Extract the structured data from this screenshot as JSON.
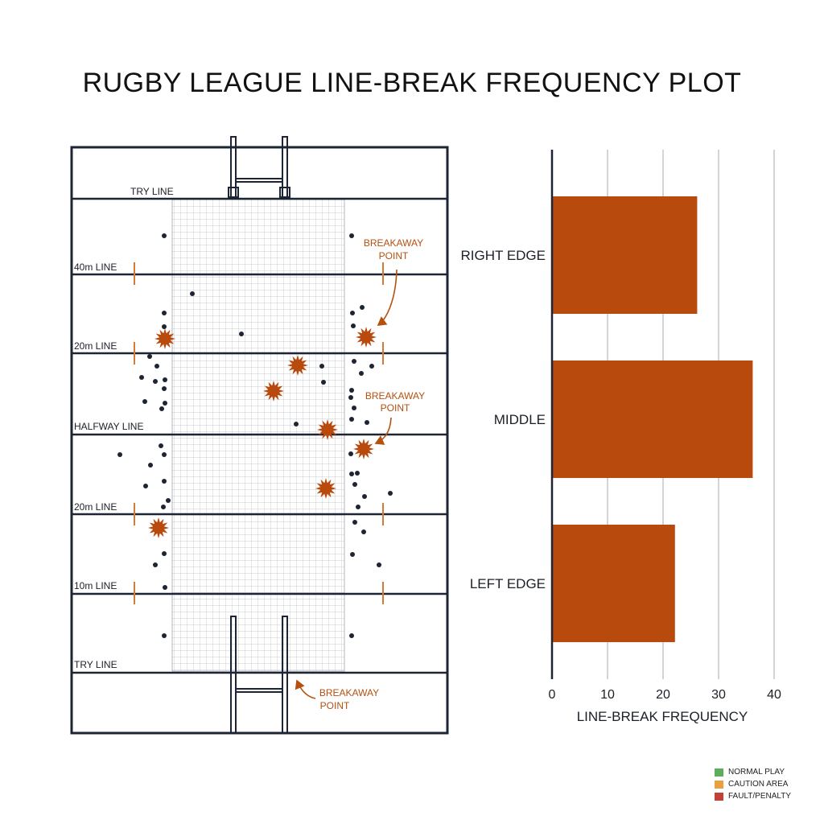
{
  "title": "RUGBY LEAGUE LINE-BREAK FREQUENCY PLOT",
  "colors": {
    "accent": "#b84a0e",
    "line": "#1d2433",
    "marker": "#d27a36",
    "legend_normal": "#5cae5a",
    "legend_caution": "#eaa040",
    "legend_fault": "#c44135"
  },
  "field": {
    "line_labels": [
      "TRY LINE",
      "40m LINE",
      "20m LINE",
      "HALFWAY LINE",
      "20m LINE",
      "10m LINE",
      "TRY LINE"
    ],
    "annotations": [
      {
        "line1": "BREAKAWAY",
        "line2": "POINT"
      },
      {
        "line1": "BREAKAWAY",
        "line2": "POINT"
      },
      {
        "line1": "BREAKAWAY",
        "line2": "POINT"
      }
    ]
  },
  "chart_data": {
    "type": "bar",
    "orientation": "horizontal",
    "categories": [
      "RIGHT EDGE",
      "MIDDLE",
      "LEFT EDGE"
    ],
    "values": [
      26,
      36,
      22
    ],
    "xlabel": "LINE-BREAK FREQUENCY",
    "ylabel": "",
    "xlim": [
      0,
      40
    ],
    "xticks": [
      "0",
      "10",
      "20",
      "30",
      "40"
    ],
    "grid": true
  },
  "legend": [
    {
      "label": "NORMAL PLAY",
      "color": "#5cae5a"
    },
    {
      "label": "CAUTION AREA",
      "color": "#eaa040"
    },
    {
      "label": "FAULT/PENALTY",
      "color": "#c44135"
    }
  ]
}
